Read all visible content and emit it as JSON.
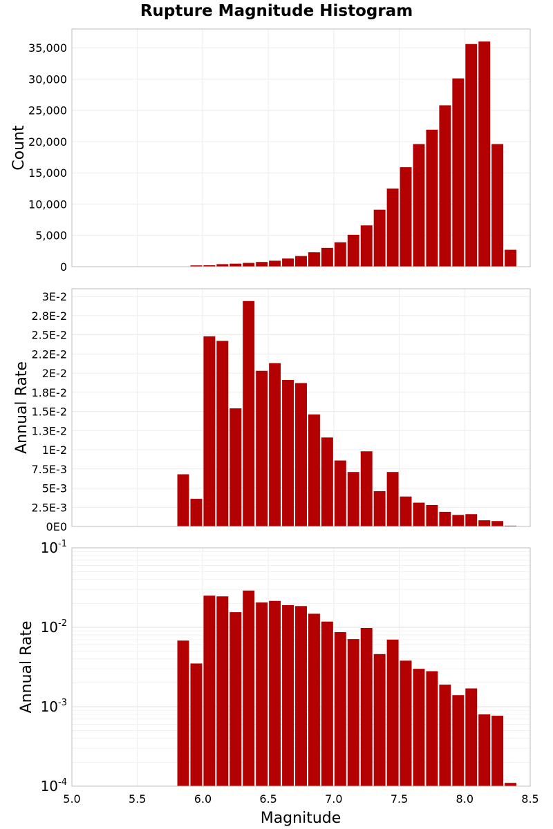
{
  "title": "Rupture Magnitude Histogram",
  "xlabel": "Magnitude",
  "bar_color": "#b30000",
  "chart_data": [
    {
      "type": "bar",
      "ylabel": "Count",
      "xlim": [
        5.0,
        8.5
      ],
      "ylim": [
        0,
        38000
      ],
      "grid": true,
      "y_ticks": [
        0,
        5000,
        10000,
        15000,
        20000,
        25000,
        30000,
        35000
      ],
      "y_tick_labels": [
        "0",
        "5,000",
        "10,000",
        "15,000",
        "20,000",
        "25,000",
        "30,000",
        "35,000"
      ],
      "x": [
        5.85,
        5.95,
        6.05,
        6.15,
        6.25,
        6.35,
        6.45,
        6.55,
        6.65,
        6.75,
        6.85,
        6.95,
        7.05,
        7.15,
        7.25,
        7.35,
        7.45,
        7.55,
        7.65,
        7.75,
        7.85,
        7.95,
        8.05,
        8.15,
        8.25,
        8.35
      ],
      "values": [
        50,
        200,
        220,
        400,
        480,
        600,
        750,
        950,
        1300,
        1700,
        2300,
        3000,
        3900,
        5100,
        6600,
        9100,
        12500,
        15900,
        19600,
        21900,
        25800,
        30100,
        35600,
        36000,
        19600,
        2700
      ]
    },
    {
      "type": "bar",
      "ylabel": "Annual Rate",
      "xlim": [
        5.0,
        8.5
      ],
      "ylim": [
        0,
        0.031
      ],
      "grid": true,
      "y_ticks": [
        0,
        0.0025,
        0.005,
        0.0075,
        0.01,
        0.0125,
        0.015,
        0.0175,
        0.02,
        0.0225,
        0.025,
        0.0275,
        0.03
      ],
      "y_tick_labels": [
        "0E0",
        "2.5E-3",
        "5E-3",
        "7.5E-3",
        "1E-2",
        "1.3E-2",
        "1.5E-2",
        "1.8E-2",
        "2E-2",
        "2.2E-2",
        "2.5E-2",
        "2.8E-2",
        "3E-2"
      ],
      "x": [
        5.85,
        5.95,
        6.05,
        6.15,
        6.25,
        6.35,
        6.45,
        6.55,
        6.65,
        6.75,
        6.85,
        6.95,
        7.05,
        7.15,
        7.25,
        7.35,
        7.45,
        7.55,
        7.65,
        7.75,
        7.85,
        7.95,
        8.05,
        8.15,
        8.25,
        8.35
      ],
      "values": [
        0.0068,
        0.0036,
        0.0248,
        0.0242,
        0.0154,
        0.0294,
        0.0203,
        0.0213,
        0.0191,
        0.0187,
        0.0146,
        0.0116,
        0.0086,
        0.0071,
        0.0098,
        0.0046,
        0.0071,
        0.0039,
        0.0031,
        0.0028,
        0.0019,
        0.0015,
        0.0016,
        0.0008,
        0.0007,
        0.0001
      ]
    },
    {
      "type": "bar",
      "ylabel": "Annual Rate",
      "xlabel": "Magnitude",
      "scale_y": "log",
      "xlim": [
        5.0,
        8.5
      ],
      "ylim": [
        0.0001,
        0.1
      ],
      "grid": true,
      "y_tick_base": "10",
      "y_tick_exponents": [
        "-4",
        "-3",
        "-2",
        "-1"
      ],
      "x_ticks": [
        5.0,
        5.5,
        6.0,
        6.5,
        7.0,
        7.5,
        8.0,
        8.5
      ],
      "x_tick_labels": [
        "5.0",
        "5.5",
        "6.0",
        "6.5",
        "7.0",
        "7.5",
        "8.0",
        "8.5"
      ],
      "x": [
        5.85,
        5.95,
        6.05,
        6.15,
        6.25,
        6.35,
        6.45,
        6.55,
        6.65,
        6.75,
        6.85,
        6.95,
        7.05,
        7.15,
        7.25,
        7.35,
        7.45,
        7.55,
        7.65,
        7.75,
        7.85,
        7.95,
        8.05,
        8.15,
        8.25,
        8.35
      ],
      "values": [
        0.0068,
        0.0035,
        0.025,
        0.0245,
        0.0155,
        0.029,
        0.0205,
        0.0215,
        0.019,
        0.0185,
        0.0148,
        0.0118,
        0.0087,
        0.0071,
        0.0098,
        0.0046,
        0.007,
        0.0038,
        0.003,
        0.0028,
        0.0019,
        0.0014,
        0.0017,
        0.0008,
        0.00077,
        0.00011
      ]
    }
  ]
}
